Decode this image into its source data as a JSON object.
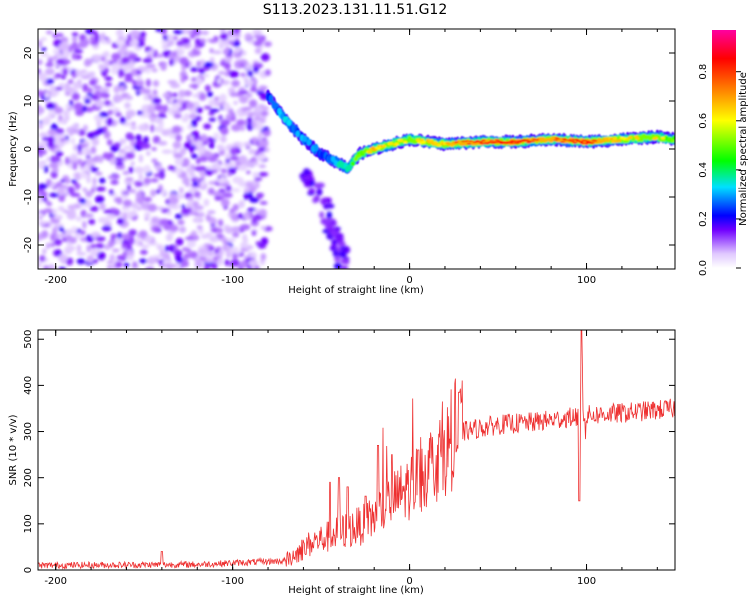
{
  "title": "S113.2023.131.11.51.G12",
  "chart_data": [
    {
      "type": "heatmap",
      "xlabel": "Height of straight line (km)",
      "ylabel": "Frequency (Hz)",
      "xlim": [
        -210,
        150
      ],
      "ylim": [
        -25,
        25
      ],
      "x_ticks": [
        -200,
        -100,
        0,
        100
      ],
      "y_ticks": [
        -20,
        -10,
        0,
        10,
        20
      ],
      "colorbar": {
        "label": "Normalized spectral amplitude",
        "range": [
          0,
          0.97
        ],
        "ticks": [
          "0.0",
          "0.2",
          "0.4",
          "0.6",
          "0.8"
        ],
        "colors": [
          "#ffffff",
          "#e0c8ff",
          "#7000ff",
          "#0000ff",
          "#00e0ff",
          "#00ff00",
          "#ffff00",
          "#ff8000",
          "#ff0000",
          "#ff00a0"
        ]
      },
      "ridge": [
        {
          "x": -80,
          "y": 11,
          "a": 0.25
        },
        {
          "x": -70,
          "y": 6,
          "a": 0.3
        },
        {
          "x": -60,
          "y": 2,
          "a": 0.25
        },
        {
          "x": -50,
          "y": -1,
          "a": 0.25
        },
        {
          "x": -40,
          "y": -3,
          "a": 0.35
        },
        {
          "x": -35,
          "y": -4,
          "a": 0.45
        },
        {
          "x": -28,
          "y": -1,
          "a": 0.5
        },
        {
          "x": -20,
          "y": 0,
          "a": 0.7
        },
        {
          "x": -10,
          "y": 1,
          "a": 0.6
        },
        {
          "x": 0,
          "y": 2,
          "a": 0.55
        },
        {
          "x": 20,
          "y": 1,
          "a": 0.7
        },
        {
          "x": 40,
          "y": 1.5,
          "a": 0.85
        },
        {
          "x": 60,
          "y": 1.5,
          "a": 0.9
        },
        {
          "x": 80,
          "y": 2,
          "a": 0.75
        },
        {
          "x": 100,
          "y": 1.5,
          "a": 0.9
        },
        {
          "x": 120,
          "y": 2,
          "a": 0.6
        },
        {
          "x": 140,
          "y": 2.5,
          "a": 0.6
        },
        {
          "x": 150,
          "y": 2,
          "a": 0.5
        }
      ],
      "lower_branch": [
        {
          "x": -60,
          "y": -5
        },
        {
          "x": -50,
          "y": -10
        },
        {
          "x": -45,
          "y": -16
        },
        {
          "x": -40,
          "y": -20
        },
        {
          "x": -37,
          "y": -24
        }
      ],
      "noise_region": {
        "x": [
          -210,
          -80
        ],
        "y": [
          -25,
          25
        ]
      }
    },
    {
      "type": "line",
      "xlabel": "Height of straight line (km)",
      "ylabel": "SNR (10 * v/v)",
      "xlim": [
        -210,
        150
      ],
      "ylim": [
        0,
        520
      ],
      "x_ticks": [
        -200,
        -100,
        0,
        100
      ],
      "y_ticks": [
        0,
        100,
        200,
        300,
        400,
        500
      ],
      "color": "#ee3030",
      "baseline": [
        {
          "x": -210,
          "y": 10
        },
        {
          "x": -120,
          "y": 12
        },
        {
          "x": -70,
          "y": 20
        },
        {
          "x": -55,
          "y": 60
        },
        {
          "x": -40,
          "y": 80
        },
        {
          "x": -25,
          "y": 100
        },
        {
          "x": -10,
          "y": 150
        },
        {
          "x": 0,
          "y": 180
        },
        {
          "x": 15,
          "y": 240
        },
        {
          "x": 30,
          "y": 300
        },
        {
          "x": 50,
          "y": 315
        },
        {
          "x": 70,
          "y": 320
        },
        {
          "x": 90,
          "y": 330
        },
        {
          "x": 100,
          "y": 335
        },
        {
          "x": 120,
          "y": 340
        },
        {
          "x": 150,
          "y": 350
        }
      ],
      "spikes": [
        {
          "x": -140,
          "y": 40
        },
        {
          "x": -45,
          "y": 190
        },
        {
          "x": -40,
          "y": 200
        },
        {
          "x": -35,
          "y": 180
        },
        {
          "x": -25,
          "y": 160
        },
        {
          "x": -18,
          "y": 270
        },
        {
          "x": -10,
          "y": 250
        },
        {
          "x": 5,
          "y": 260
        },
        {
          "x": 28,
          "y": 385
        },
        {
          "x": 96,
          "y": 150
        },
        {
          "x": 97,
          "y": 520
        },
        {
          "x": 98,
          "y": 440
        }
      ]
    }
  ]
}
